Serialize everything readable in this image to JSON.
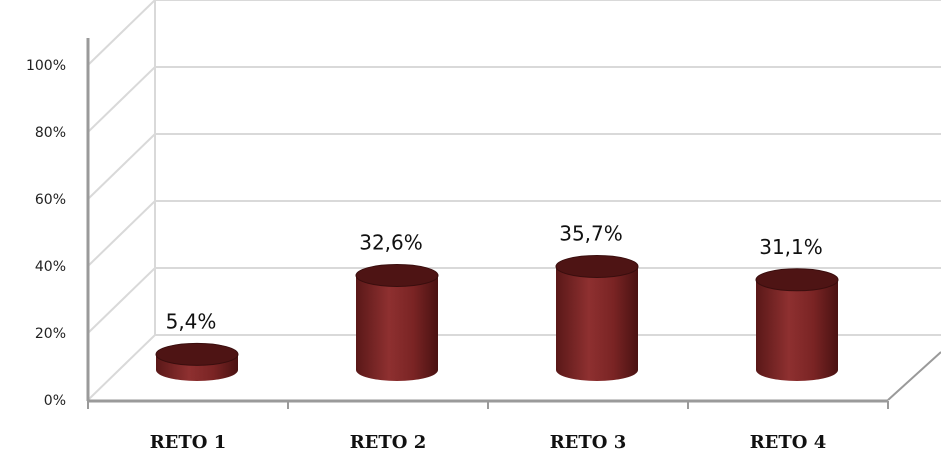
{
  "chart_data": {
    "type": "bar",
    "style": "3d-cylinder",
    "categories": [
      "RETO 1",
      "RETO 2",
      "RETO 3",
      "RETO 4"
    ],
    "values": [
      5.4,
      32.6,
      35.7,
      31.1
    ],
    "value_labels": [
      "5,4%",
      "32,6%",
      "35,7%",
      "31,1%"
    ],
    "yticks": [
      "0%",
      "20%",
      "40%",
      "60%",
      "80%",
      "100%"
    ],
    "ylim": [
      0,
      100
    ],
    "grid": true,
    "legend": "none",
    "colors": {
      "bar": "#7a2222",
      "bar_dark": "#4e1414",
      "bar_light": "#a04040",
      "grid": "#d9d9d9",
      "axis": "#9a9a9a"
    }
  }
}
